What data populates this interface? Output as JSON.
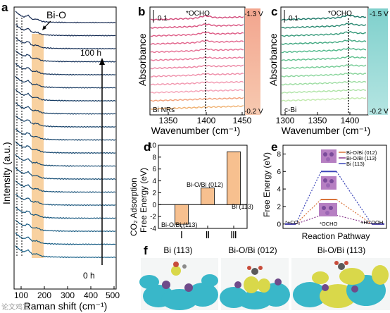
{
  "panels": {
    "a": {
      "letter": "a",
      "xlabel": "Raman shift (cm⁻¹)",
      "ylabel": "Intensity (a.u.)",
      "xticks": [
        "100",
        "200",
        "300",
        "400",
        "500"
      ],
      "annotation": "Bi-O",
      "time_top": "100 h",
      "time_bottom": "0 h"
    },
    "b": {
      "letter": "b",
      "ylabel": "Absorbance",
      "xlabel": "Wavenumber (cm⁻¹)",
      "xticks": [
        "1350",
        "1400",
        "1450"
      ],
      "scale": "0.1",
      "peak": "*OCHO",
      "sample": "Bi NRs",
      "v_top": "-1.3 V",
      "v_bottom": "-0.2 V"
    },
    "c": {
      "letter": "c",
      "ylabel": "Absorbance",
      "xlabel": "Wavenumber (cm⁻¹)",
      "xticks": [
        "1300",
        "1350",
        "1400"
      ],
      "scale": "0.1",
      "peak": "*OCHO",
      "sample": "c-Bi",
      "v_top": "-1.5 V",
      "v_bottom": "-0.2 V"
    },
    "d": {
      "letter": "d",
      "ylabel_line1": "CO₂ Adsorption",
      "ylabel_line2": "Free Energy (eV)",
      "yticks": [
        "-4",
        "-2",
        "0",
        "2",
        "4",
        "6",
        "8",
        "10"
      ],
      "xticks": [
        "Ⅰ",
        "Ⅱ",
        "Ⅲ"
      ]
    },
    "e": {
      "letter": "e",
      "ylabel": "Free Energy (eV)",
      "xlabel": "Reaction Pathway",
      "yticks": [
        "0",
        "2",
        "4",
        "6",
        "8"
      ],
      "label_left": "*+CO₂",
      "label_mid": "*OCHO",
      "label_right": "+HCOOH"
    },
    "f": {
      "letter": "f",
      "titles": [
        "Bi (113)",
        "Bi-O/Bi (012)",
        "Bi-O/Bi (113)"
      ]
    }
  },
  "chart_data": [
    {
      "type": "bar",
      "panel": "d",
      "categories": [
        "Bi-O/Bi (113)",
        "Bi-O/Bi (012)",
        "Bi (113)"
      ],
      "values": [
        -3.3,
        2.8,
        8.9
      ],
      "ylim": [
        -4,
        10
      ],
      "color": "#f7c08f"
    },
    {
      "type": "line",
      "panel": "e",
      "x_stages": [
        "*+CO₂",
        "*OCHO",
        "+HCOOH"
      ],
      "ylim": [
        -0.5,
        9
      ],
      "series": [
        {
          "name": "Bi-O/Bi (012)",
          "values": [
            0,
            2.8,
            0
          ],
          "color": "#d9733a"
        },
        {
          "name": "Bi-O/Bi (113)",
          "values": [
            0,
            1.0,
            0
          ],
          "color": "#8c3b8f"
        },
        {
          "name": "Bi (113)",
          "values": [
            0,
            6.0,
            0
          ],
          "color": "#3c46b8"
        }
      ]
    }
  ],
  "watermark": "论文鸡宣"
}
